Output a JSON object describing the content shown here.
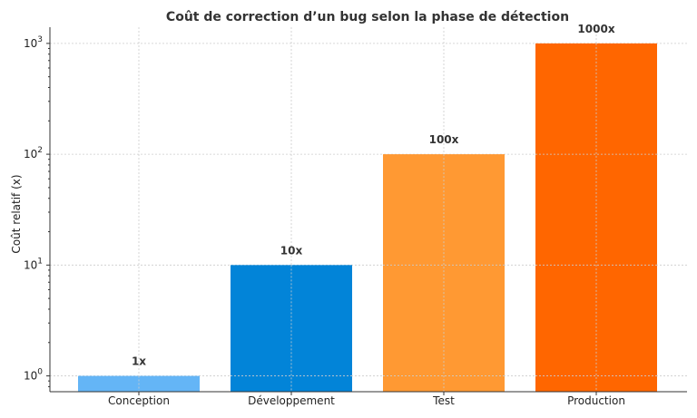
{
  "chart_data": {
    "type": "bar",
    "title": "Coût de correction d’un bug selon la phase de détection",
    "xlabel": "",
    "ylabel": "Coût relatif (x)",
    "yscale": "log",
    "ylim": [
      0.72,
      1400
    ],
    "grid": true,
    "categories": [
      "Conception",
      "Développement",
      "Test",
      "Production"
    ],
    "values": [
      1,
      10,
      100,
      1000
    ],
    "data_labels": [
      "1x",
      "10x",
      "100x",
      "1000x"
    ],
    "colors": [
      "#64b5f6",
      "#0284d8",
      "#ff9933",
      "#ff6600"
    ],
    "yticks": [
      {
        "value": 1,
        "base": "10",
        "exp": "0"
      },
      {
        "value": 10,
        "base": "10",
        "exp": "1"
      },
      {
        "value": 100,
        "base": "10",
        "exp": "2"
      },
      {
        "value": 1000,
        "base": "10",
        "exp": "3"
      }
    ]
  }
}
